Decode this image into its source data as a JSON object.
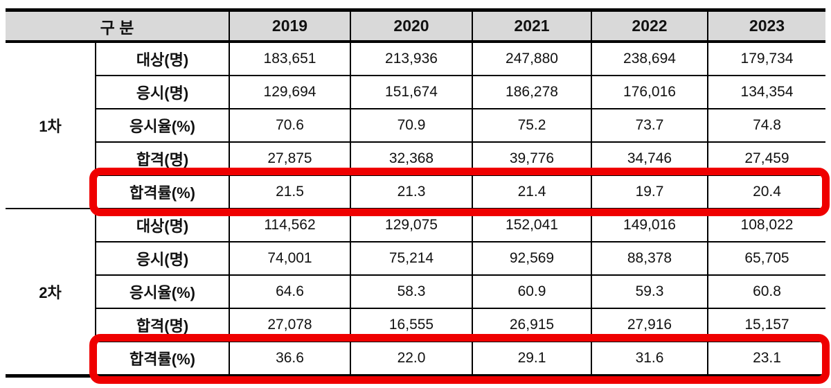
{
  "style": {
    "header_bg": "#d9d9d9",
    "border_color": "#000000",
    "highlight_border_color": "#ef0000"
  },
  "chart_data": {
    "type": "table",
    "header": {
      "group_label": "구 분",
      "years": [
        "2019",
        "2020",
        "2021",
        "2022",
        "2023"
      ]
    },
    "sections": [
      {
        "label": "1차",
        "rows": [
          {
            "label": "대상(명)",
            "highlighted": false,
            "values": [
              "183,651",
              "213,936",
              "247,880",
              "238,694",
              "179,734"
            ]
          },
          {
            "label": "응시(명)",
            "highlighted": false,
            "values": [
              "129,694",
              "151,674",
              "186,278",
              "176,016",
              "134,354"
            ]
          },
          {
            "label": "응시율(%)",
            "highlighted": false,
            "values": [
              "70.6",
              "70.9",
              "75.2",
              "73.7",
              "74.8"
            ]
          },
          {
            "label": "합격(명)",
            "highlighted": false,
            "values": [
              "27,875",
              "32,368",
              "39,776",
              "34,746",
              "27,459"
            ]
          },
          {
            "label": "합격률(%)",
            "highlighted": true,
            "values": [
              "21.5",
              "21.3",
              "21.4",
              "19.7",
              "20.4"
            ]
          }
        ]
      },
      {
        "label": "2차",
        "rows": [
          {
            "label": "대상(명)",
            "highlighted": false,
            "values": [
              "114,562",
              "129,075",
              "152,041",
              "149,016",
              "108,022"
            ]
          },
          {
            "label": "응시(명)",
            "highlighted": false,
            "values": [
              "74,001",
              "75,214",
              "92,569",
              "88,378",
              "65,705"
            ]
          },
          {
            "label": "응시율(%)",
            "highlighted": false,
            "values": [
              "64.6",
              "58.3",
              "60.9",
              "59.3",
              "60.8"
            ]
          },
          {
            "label": "합격(명)",
            "highlighted": false,
            "values": [
              "27,078",
              "16,555",
              "26,915",
              "27,916",
              "15,157"
            ]
          },
          {
            "label": "합격률(%)",
            "highlighted": true,
            "values": [
              "36.6",
              "22.0",
              "29.1",
              "31.6",
              "23.1"
            ]
          }
        ]
      }
    ]
  }
}
